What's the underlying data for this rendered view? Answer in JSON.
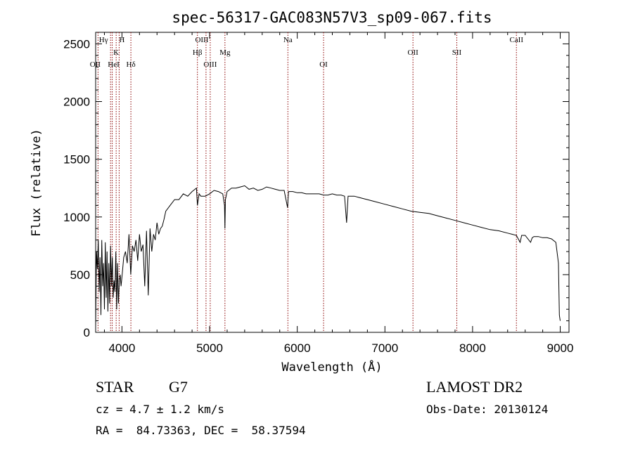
{
  "chart_data": {
    "type": "line",
    "title": "spec-56317-GAC083N57V3_sp09-067.fits",
    "xlabel": "Wavelength (Å)",
    "ylabel": "Flux (relative)",
    "xlim": [
      3700,
      9100
    ],
    "ylim": [
      0,
      2600
    ],
    "x_ticks": [
      4000,
      5000,
      6000,
      7000,
      8000,
      9000
    ],
    "y_ticks": [
      0,
      500,
      1000,
      1500,
      2000,
      2500
    ],
    "grid": false,
    "line_color": "#000000",
    "marker_color": "#8b0000",
    "spectrum": {
      "x": [
        3700,
        3710,
        3720,
        3730,
        3740,
        3750,
        3760,
        3770,
        3780,
        3790,
        3800,
        3810,
        3820,
        3830,
        3840,
        3850,
        3860,
        3870,
        3880,
        3890,
        3900,
        3910,
        3920,
        3930,
        3940,
        3950,
        3960,
        3970,
        3980,
        3990,
        4000,
        4020,
        4040,
        4060,
        4080,
        4100,
        4120,
        4140,
        4160,
        4180,
        4200,
        4220,
        4240,
        4260,
        4280,
        4300,
        4320,
        4340,
        4360,
        4380,
        4400,
        4420,
        4440,
        4460,
        4480,
        4500,
        4550,
        4600,
        4650,
        4700,
        4750,
        4800,
        4850,
        4861,
        4880,
        4900,
        4950,
        5000,
        5050,
        5100,
        5150,
        5170,
        5175,
        5180,
        5200,
        5250,
        5300,
        5350,
        5400,
        5450,
        5500,
        5550,
        5600,
        5650,
        5700,
        5750,
        5800,
        5850,
        5890,
        5900,
        5950,
        6000,
        6050,
        6100,
        6150,
        6200,
        6250,
        6300,
        6350,
        6400,
        6450,
        6500,
        6540,
        6563,
        6580,
        6600,
        6650,
        6700,
        6750,
        6800,
        6900,
        7000,
        7100,
        7200,
        7300,
        7400,
        7500,
        7600,
        7700,
        7800,
        7900,
        8000,
        8100,
        8200,
        8300,
        8400,
        8450,
        8500,
        8542,
        8560,
        8600,
        8662,
        8680,
        8700,
        8750,
        8800,
        8850,
        8900,
        8950,
        8980,
        8990,
        9000
      ],
      "y": [
        50,
        700,
        550,
        800,
        350,
        650,
        150,
        800,
        400,
        600,
        200,
        780,
        300,
        700,
        180,
        600,
        250,
        750,
        400,
        650,
        300,
        450,
        350,
        700,
        200,
        600,
        250,
        450,
        500,
        400,
        480,
        650,
        700,
        600,
        850,
        500,
        750,
        700,
        800,
        620,
        850,
        700,
        760,
        400,
        880,
        320,
        900,
        700,
        850,
        800,
        950,
        850,
        900,
        920,
        980,
        1050,
        1100,
        1150,
        1150,
        1200,
        1180,
        1220,
        1250,
        1100,
        1200,
        1180,
        1180,
        1200,
        1230,
        1220,
        1200,
        1100,
        900,
        1150,
        1220,
        1250,
        1250,
        1260,
        1270,
        1240,
        1250,
        1230,
        1240,
        1260,
        1250,
        1240,
        1230,
        1230,
        1080,
        1220,
        1220,
        1210,
        1210,
        1200,
        1200,
        1200,
        1200,
        1190,
        1190,
        1200,
        1190,
        1190,
        1180,
        950,
        1180,
        1180,
        1180,
        1170,
        1160,
        1150,
        1130,
        1110,
        1090,
        1070,
        1050,
        1040,
        1030,
        1010,
        990,
        970,
        950,
        930,
        910,
        890,
        880,
        860,
        850,
        840,
        780,
        840,
        840,
        780,
        820,
        830,
        830,
        820,
        820,
        810,
        780,
        600,
        150,
        100
      ]
    },
    "lines": [
      {
        "label": "Hγ",
        "x": 3870,
        "row": 0,
        "dx": -10
      },
      {
        "label": "H",
        "x": 3968,
        "row": 0,
        "dx": 4
      },
      {
        "label": "K",
        "x": 3934,
        "row": 1,
        "dx": 0
      },
      {
        "label": "OII",
        "x": 3727,
        "row": 2,
        "dx": -4
      },
      {
        "label": "HeI",
        "x": 3889,
        "row": 2,
        "dx": 2
      },
      {
        "label": "Hδ",
        "x": 4102,
        "row": 2,
        "dx": 0
      },
      {
        "label": "OIII",
        "x": 4959,
        "row": 0,
        "dx": -6
      },
      {
        "label": "Hβ",
        "x": 4861,
        "row": 1,
        "dx": 0
      },
      {
        "label": "Mg",
        "x": 5175,
        "row": 1,
        "dx": 0
      },
      {
        "label": "OIII",
        "x": 5007,
        "row": 2,
        "dx": 0
      },
      {
        "label": "Na",
        "x": 5893,
        "row": 0,
        "dx": 0
      },
      {
        "label": "OI",
        "x": 6300,
        "row": 2,
        "dx": 0
      },
      {
        "label": "OII",
        "x": 7320,
        "row": 1,
        "dx": 0
      },
      {
        "label": "SII",
        "x": 7820,
        "row": 1,
        "dx": 0
      },
      {
        "label": "CaII",
        "x": 8500,
        "row": 0,
        "dx": 0
      }
    ]
  },
  "footer": {
    "object_type": "STAR",
    "subclass": "G7",
    "cz": "cz = 4.7 ± 1.2 km/s",
    "coords": "RA =  84.73363, DEC =  58.37594",
    "survey": "LAMOST DR2",
    "obs_date": "Obs-Date: 20130124"
  }
}
